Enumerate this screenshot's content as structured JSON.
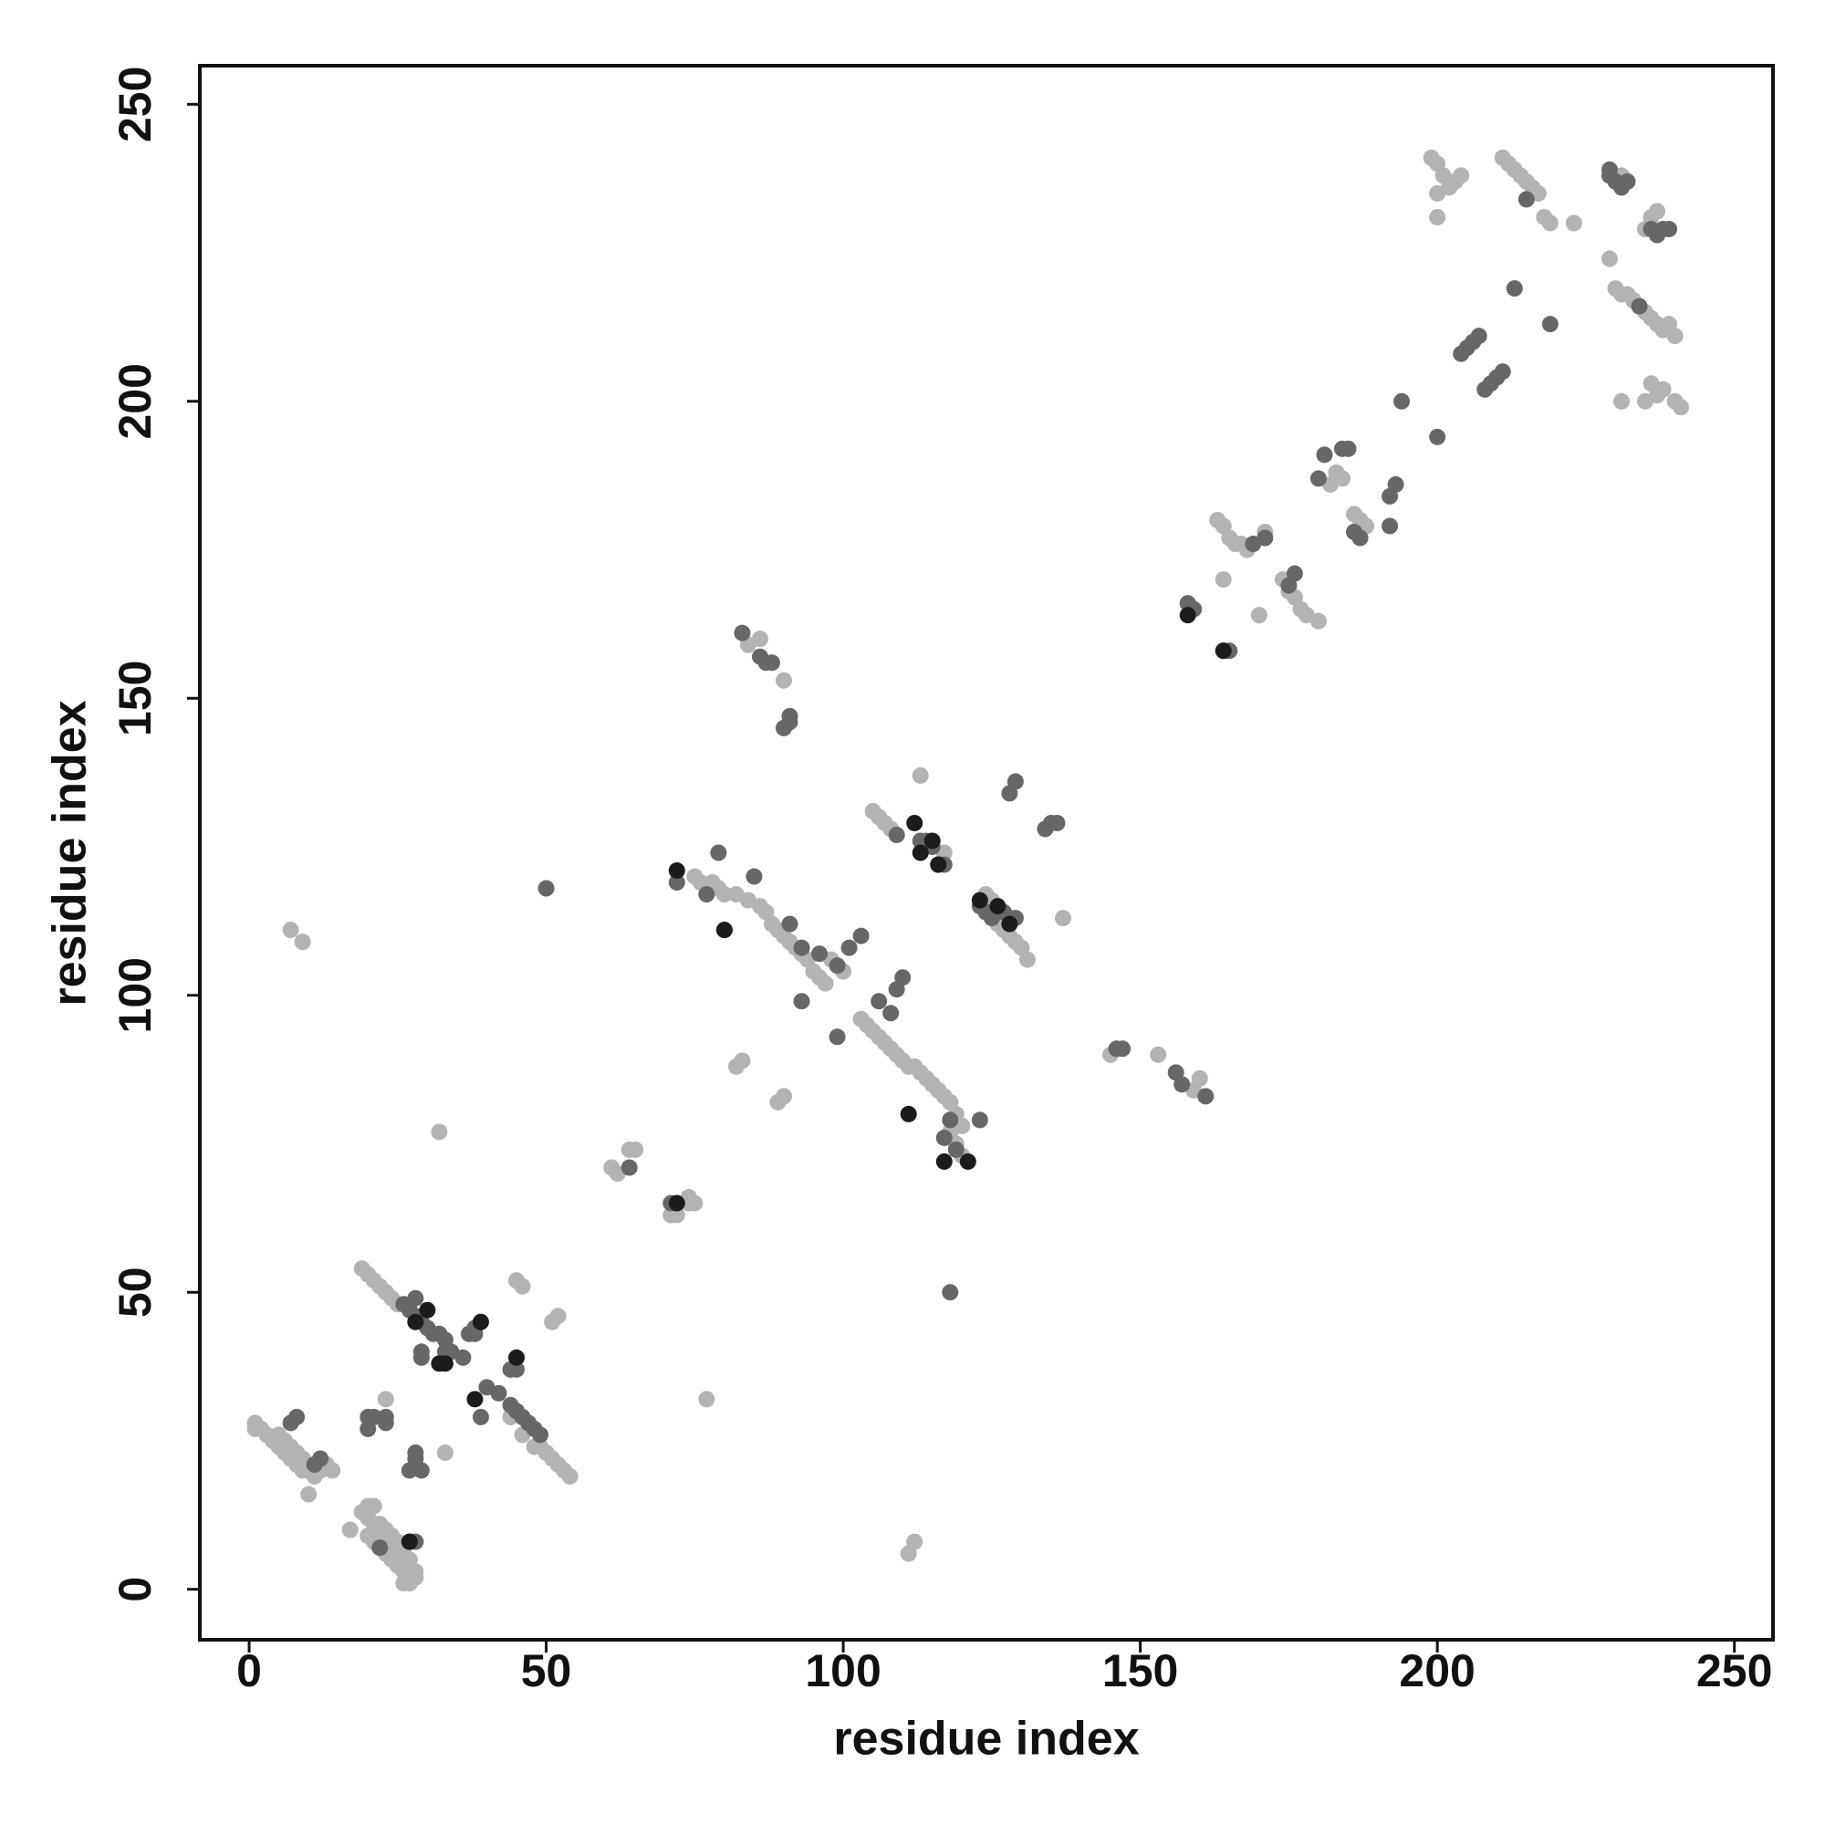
{
  "chart_data": {
    "type": "scatter",
    "x_label": "residue index",
    "y_label": "residue index",
    "xlim": [
      -8.3,
      256.5
    ],
    "ylim": [
      -8.5,
      256.5
    ],
    "xticks": [
      0,
      50,
      100,
      150,
      200,
      250
    ],
    "yticks": [
      0,
      50,
      100,
      150,
      200,
      250
    ],
    "series": [
      {
        "color": "#b3b3b3",
        "x": [
          1,
          1,
          2,
          3,
          4,
          5,
          6,
          7,
          8,
          9,
          10,
          11,
          12,
          13,
          14,
          5,
          6,
          7,
          8,
          9,
          10,
          10,
          19,
          20,
          21,
          22,
          23,
          24,
          25,
          26,
          27,
          28,
          28,
          27,
          26,
          20,
          21,
          22,
          23,
          24,
          25,
          26,
          17,
          20,
          21,
          22,
          23,
          24,
          25,
          26,
          19,
          20,
          21,
          22,
          23,
          24,
          25,
          45,
          46,
          48,
          49,
          50,
          51,
          52,
          53,
          54,
          44,
          45,
          46,
          52,
          51,
          32,
          33,
          77,
          23,
          7,
          9,
          61,
          62,
          64,
          65,
          71,
          72,
          74,
          75,
          74,
          75,
          76,
          77,
          78,
          79,
          80,
          82,
          84,
          86,
          87,
          88,
          89,
          90,
          91,
          92,
          93,
          94,
          95,
          96,
          97,
          103,
          104,
          105,
          106,
          107,
          108,
          109,
          110,
          111,
          112,
          113,
          114,
          115,
          116,
          117,
          118,
          119,
          120,
          118,
          119,
          120,
          82,
          83,
          89,
          90,
          98,
          100,
          112,
          111,
          105,
          106,
          107,
          108,
          113,
          117,
          124,
          125,
          126,
          127,
          128,
          129,
          130,
          131,
          137,
          84,
          86,
          90,
          90,
          145,
          153,
          159,
          160,
          163,
          164,
          165,
          166,
          167,
          168,
          164,
          170,
          171,
          174,
          175,
          176,
          177,
          178,
          180,
          182,
          183,
          184,
          186,
          187,
          188,
          199,
          200,
          201,
          202,
          203,
          204,
          200,
          200,
          211,
          212,
          213,
          214,
          215,
          216,
          217,
          218,
          219,
          223,
          229,
          230,
          231,
          232,
          233,
          234,
          235,
          236,
          237,
          238,
          239,
          240,
          236,
          237,
          238,
          240,
          241,
          231,
          235,
          237,
          236,
          235,
          231
        ],
        "values": [
          28,
          27,
          27,
          26,
          25,
          24,
          23,
          22,
          21,
          20,
          20,
          19,
          20,
          21,
          20,
          26,
          25,
          24,
          23,
          22,
          21,
          16,
          13,
          12,
          11,
          10,
          9,
          8,
          7,
          6,
          5,
          3,
          2,
          1,
          1,
          14,
          14,
          11,
          10,
          9,
          8,
          7,
          10,
          9,
          8,
          7,
          6,
          5,
          4,
          3,
          54,
          53,
          52,
          51,
          50,
          49,
          48,
          30,
          26,
          24,
          24,
          23,
          22,
          21,
          20,
          19,
          29,
          52,
          51,
          46,
          45,
          77,
          23,
          32,
          32,
          111,
          109,
          71,
          70,
          74,
          74,
          63,
          63,
          65,
          65,
          66,
          120,
          119,
          118,
          119,
          118,
          117,
          117,
          116,
          115,
          114,
          112,
          111,
          110,
          109,
          108,
          107,
          106,
          104,
          103,
          102,
          96,
          95,
          94,
          93,
          92,
          91,
          90,
          89,
          88,
          88,
          87,
          86,
          85,
          84,
          83,
          82,
          80,
          78,
          77,
          75,
          73,
          88,
          89,
          82,
          83,
          106,
          104,
          8,
          6,
          131,
          130,
          129,
          128,
          137,
          124,
          117,
          116,
          112,
          111,
          110,
          109,
          108,
          106,
          113,
          159,
          160,
          153,
          145,
          90,
          90,
          84,
          86,
          180,
          179,
          177,
          176,
          176,
          175,
          170,
          164,
          178,
          170,
          168,
          167,
          165,
          164,
          163,
          186,
          188,
          187,
          181,
          180,
          179,
          241,
          240,
          238,
          236,
          237,
          238,
          231,
          235,
          241,
          240,
          239,
          238,
          237,
          236,
          235,
          231,
          230,
          230,
          224,
          219,
          218,
          218,
          217,
          216,
          215,
          214,
          213,
          212,
          213,
          211,
          203,
          201,
          202,
          200,
          199,
          200,
          200,
          232,
          231,
          229,
          238
        ]
      },
      {
        "color": "#676767",
        "x": [
          8,
          7,
          11,
          12,
          27,
          28,
          22,
          26,
          27,
          28,
          29,
          30,
          31,
          32,
          33,
          28,
          29,
          40,
          42,
          44,
          45,
          46,
          47,
          48,
          49,
          44,
          45,
          38,
          39,
          20,
          20,
          21,
          23,
          23,
          28,
          28,
          27,
          29,
          37,
          38,
          29,
          33,
          34,
          36,
          50,
          64,
          71,
          72,
          77,
          79,
          80,
          85,
          91,
          93,
          96,
          99,
          93,
          101,
          103,
          99,
          106,
          108,
          109,
          110,
          118,
          123,
          117,
          119,
          118,
          109,
          113,
          114,
          115,
          116,
          117,
          123,
          124,
          125,
          127,
          128,
          129,
          128,
          129,
          134,
          135,
          136,
          83,
          86,
          87,
          88,
          91,
          91,
          90,
          147,
          146,
          156,
          157,
          161,
          158,
          159,
          164,
          165,
          169,
          171,
          175,
          176,
          180,
          181,
          184,
          185,
          186,
          187,
          192,
          192,
          193,
          194,
          200,
          204,
          205,
          206,
          207,
          208,
          209,
          210,
          211,
          213,
          219,
          229,
          229,
          230,
          231,
          232,
          236,
          237,
          238,
          239,
          215,
          234
        ],
        "values": [
          29,
          28,
          21,
          22,
          8,
          8,
          7,
          48,
          47,
          46,
          45,
          44,
          43,
          43,
          42,
          49,
          40,
          34,
          33,
          31,
          30,
          29,
          28,
          27,
          26,
          37,
          37,
          44,
          29,
          29,
          27,
          29,
          29,
          28,
          23,
          22,
          20,
          20,
          43,
          43,
          39,
          40,
          40,
          39,
          118,
          71,
          65,
          119,
          117,
          124,
          111,
          120,
          112,
          108,
          107,
          105,
          99,
          108,
          110,
          93,
          99,
          97,
          101,
          103,
          79,
          79,
          76,
          74,
          50,
          127,
          126,
          126,
          125,
          122,
          122,
          115,
          114,
          113,
          114,
          113,
          113,
          134,
          136,
          128,
          129,
          129,
          161,
          157,
          156,
          156,
          146,
          147,
          145,
          91,
          91,
          87,
          85,
          83,
          166,
          165,
          158,
          158,
          176,
          177,
          169,
          171,
          187,
          191,
          192,
          192,
          178,
          177,
          179,
          184,
          186,
          200,
          194,
          208,
          209,
          210,
          211,
          202,
          203,
          204,
          205,
          219,
          213,
          239,
          238,
          237,
          236,
          237,
          229,
          228,
          229,
          229,
          234,
          216
        ]
      },
      {
        "color": "#1c1c1c",
        "x": [
          27,
          28,
          30,
          32,
          33,
          39,
          38,
          45,
          72,
          72,
          80,
          111,
          121,
          117,
          112,
          113,
          115,
          116,
          123,
          126,
          128,
          158,
          164
        ],
        "values": [
          8,
          45,
          47,
          38,
          38,
          45,
          32,
          39,
          65,
          121,
          111,
          80,
          72,
          72,
          129,
          124,
          126,
          122,
          116,
          115,
          112,
          164,
          158
        ]
      }
    ]
  }
}
